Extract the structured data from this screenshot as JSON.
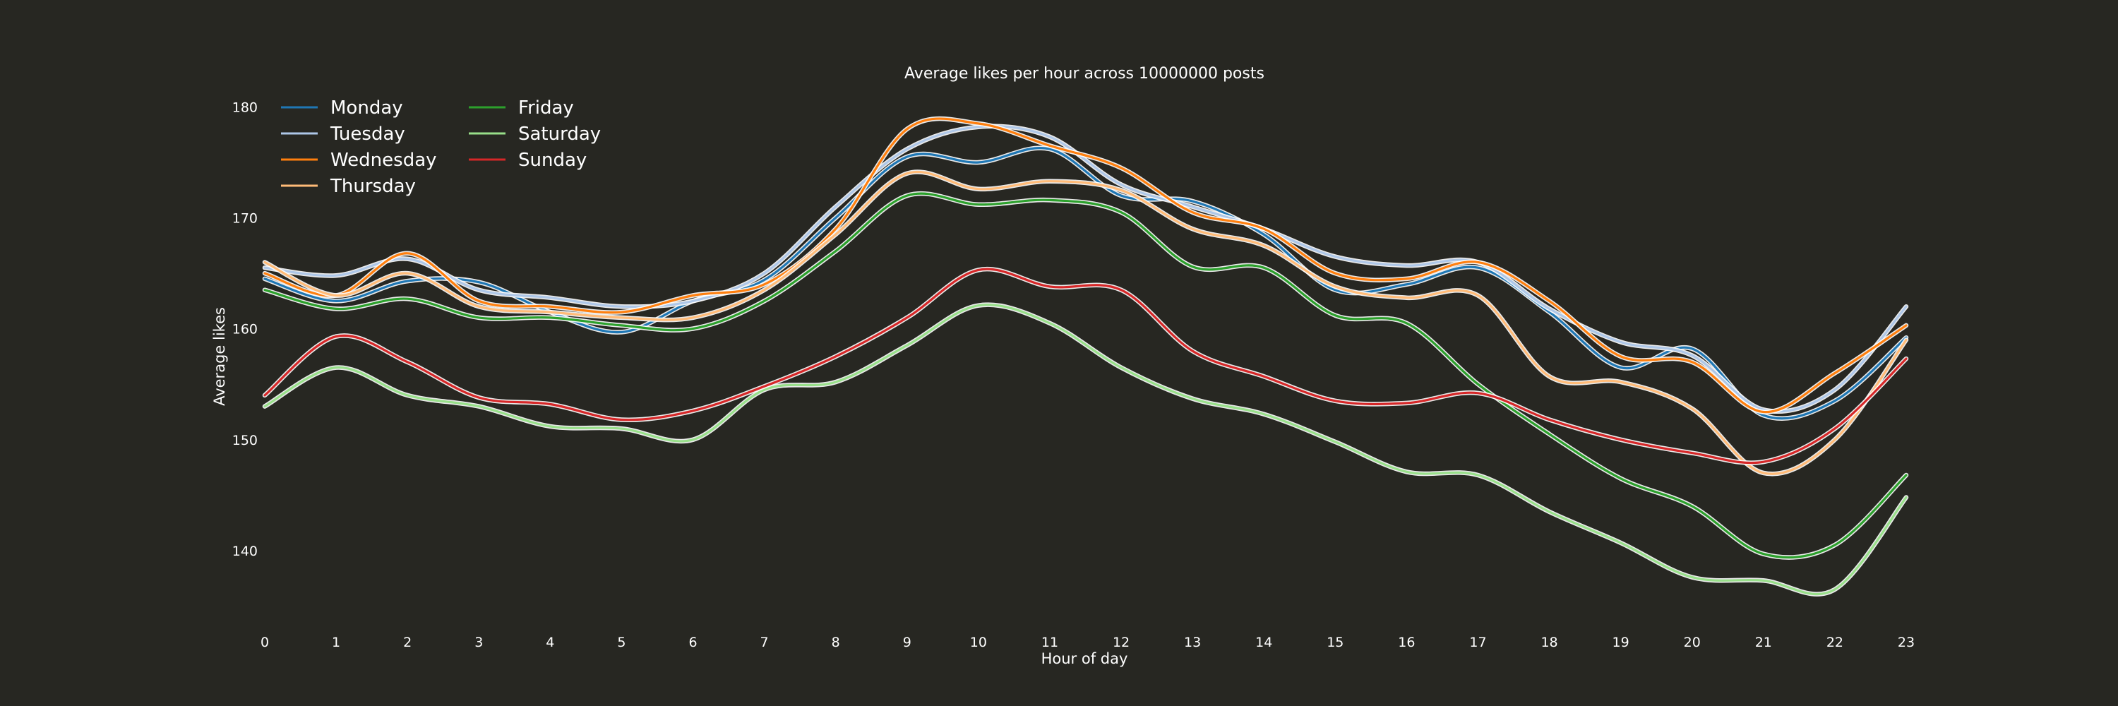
{
  "chart_data": {
    "type": "line",
    "title": "Average likes per hour across 10000000 posts",
    "xlabel": "Hour of day",
    "ylabel": "Average likes",
    "x": [
      0,
      1,
      2,
      3,
      4,
      5,
      6,
      7,
      8,
      9,
      10,
      11,
      12,
      13,
      14,
      15,
      16,
      17,
      18,
      19,
      20,
      21,
      22,
      23
    ],
    "xlim": [
      0,
      23
    ],
    "ylim": [
      133.5,
      182
    ],
    "yticks": [
      140,
      150,
      160,
      170,
      180
    ],
    "grid": false,
    "legend_position": "top-left",
    "series": [
      {
        "name": "Monday",
        "color": "#1f77b4",
        "values": [
          164.5,
          162.5,
          164.3,
          164.2,
          161.5,
          159.7,
          162.5,
          164.4,
          170.0,
          175.5,
          175.0,
          176.2,
          172.0,
          171.5,
          168.5,
          163.5,
          164.0,
          165.5,
          161.5,
          156.5,
          158.2,
          152.2,
          153.5,
          159.2
        ]
      },
      {
        "name": "Tuesday",
        "color": "#aec7e8",
        "values": [
          165.5,
          164.8,
          166.3,
          163.5,
          162.8,
          162.0,
          162.5,
          165.0,
          171.0,
          176.2,
          178.2,
          177.3,
          173.0,
          171.0,
          169.0,
          166.5,
          165.7,
          166.0,
          161.8,
          158.8,
          157.6,
          152.7,
          154.5,
          162.0
        ]
      },
      {
        "name": "Wednesday",
        "color": "#ff7f0e",
        "values": [
          165.0,
          163.0,
          166.8,
          162.5,
          162.0,
          161.5,
          163.0,
          164.0,
          169.0,
          178.0,
          178.5,
          176.5,
          174.5,
          170.5,
          169.0,
          165.0,
          164.5,
          166.0,
          162.5,
          157.5,
          157.0,
          152.5,
          156.0,
          160.3
        ]
      },
      {
        "name": "Thursday",
        "color": "#ffbb78",
        "values": [
          166.0,
          163.0,
          165.0,
          162.0,
          161.5,
          161.0,
          161.0,
          163.5,
          168.5,
          174.0,
          172.6,
          173.3,
          172.5,
          169.0,
          167.5,
          163.8,
          162.8,
          163.0,
          155.7,
          155.2,
          152.8,
          147.0,
          150.0,
          159.0
        ]
      },
      {
        "name": "Friday",
        "color": "#2ca02c",
        "values": [
          163.5,
          161.8,
          162.7,
          161.0,
          161.0,
          160.3,
          160.0,
          162.5,
          167.0,
          172.0,
          171.2,
          171.6,
          170.5,
          165.6,
          165.5,
          161.2,
          160.5,
          155.0,
          150.5,
          146.5,
          144.0,
          139.7,
          140.5,
          146.8
        ]
      },
      {
        "name": "Saturday",
        "color": "#98df8a",
        "values": [
          153.0,
          156.5,
          154.0,
          153.0,
          151.2,
          151.0,
          150.0,
          154.5,
          155.2,
          158.5,
          162.1,
          160.5,
          156.5,
          153.7,
          152.3,
          149.8,
          147.1,
          146.8,
          143.5,
          140.7,
          137.6,
          137.3,
          136.5,
          144.8
        ]
      },
      {
        "name": "Sunday",
        "color": "#d62728",
        "values": [
          154.0,
          159.3,
          157.0,
          153.8,
          153.2,
          151.8,
          152.6,
          154.8,
          157.5,
          161.0,
          165.3,
          163.8,
          163.5,
          158.0,
          155.7,
          153.5,
          153.3,
          154.2,
          151.8,
          150.0,
          148.8,
          148.0,
          151.0,
          157.3
        ]
      }
    ]
  }
}
